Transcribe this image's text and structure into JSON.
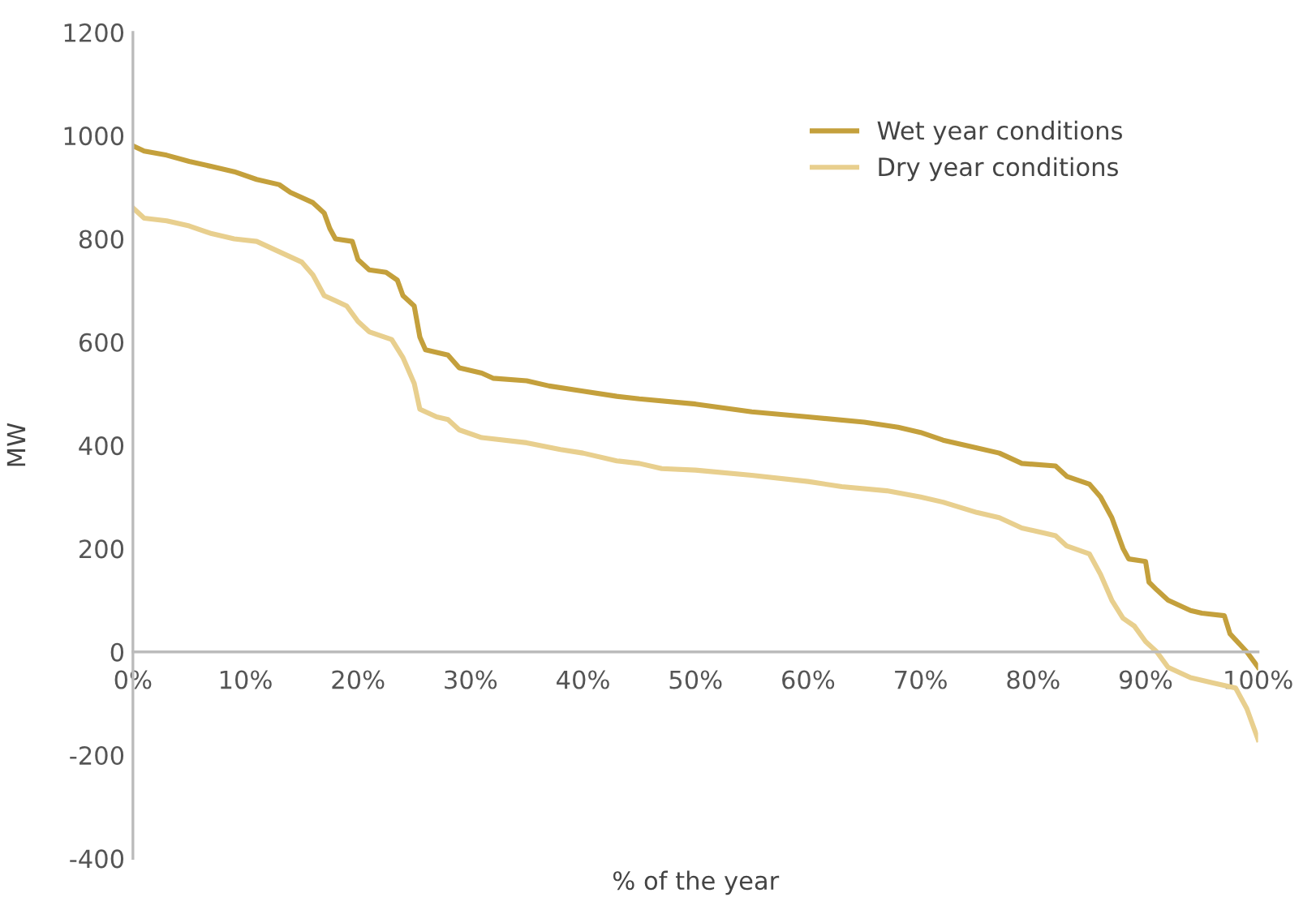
{
  "chart_data": {
    "type": "line",
    "xlabel": "% of the year",
    "ylabel": "MW",
    "xlim": [
      0,
      100
    ],
    "ylim": [
      -400,
      1200
    ],
    "xticks": [
      {
        "value": 0,
        "label": "0%"
      },
      {
        "value": 10,
        "label": "10%"
      },
      {
        "value": 20,
        "label": "20%"
      },
      {
        "value": 30,
        "label": "30%"
      },
      {
        "value": 40,
        "label": "40%"
      },
      {
        "value": 50,
        "label": "50%"
      },
      {
        "value": 60,
        "label": "60%"
      },
      {
        "value": 70,
        "label": "70%"
      },
      {
        "value": 80,
        "label": "80%"
      },
      {
        "value": 90,
        "label": "90%"
      },
      {
        "value": 100,
        "label": "100%"
      }
    ],
    "yticks": [
      -400,
      -200,
      0,
      200,
      400,
      600,
      800,
      1000,
      1200
    ],
    "grid": false,
    "legend": "top right",
    "marker": "none",
    "line_style": "solid",
    "series": [
      {
        "name": "Wet year conditions",
        "color": "#c4a03c",
        "x": [
          0,
          1,
          3,
          5,
          7,
          9,
          11,
          13,
          14,
          16,
          17,
          17.5,
          18,
          19.5,
          20,
          21,
          22.5,
          23.5,
          24,
          25,
          25.5,
          26,
          28,
          29,
          31,
          32,
          35,
          37,
          40,
          43,
          45,
          50,
          55,
          60,
          65,
          68,
          70,
          72,
          75,
          77,
          79,
          82,
          83,
          85,
          86,
          87,
          88,
          88.5,
          90,
          90.3,
          91,
          92,
          94,
          95,
          97,
          97.5,
          99,
          100
        ],
        "values": [
          980,
          970,
          962,
          950,
          940,
          930,
          915,
          905,
          890,
          870,
          850,
          820,
          800,
          795,
          760,
          740,
          735,
          720,
          690,
          670,
          610,
          585,
          575,
          550,
          540,
          530,
          525,
          515,
          505,
          495,
          490,
          480,
          465,
          455,
          445,
          435,
          425,
          410,
          395,
          385,
          365,
          360,
          340,
          325,
          300,
          260,
          200,
          180,
          175,
          135,
          120,
          100,
          80,
          75,
          70,
          35,
          0,
          -30
        ]
      },
      {
        "name": "Dry year conditions",
        "color": "#e8cf8e",
        "x": [
          0,
          1,
          3,
          5,
          7,
          9,
          11,
          13,
          15,
          16,
          17,
          18,
          19,
          20,
          21,
          23,
          24,
          25,
          25.5,
          27,
          28,
          29,
          31,
          35,
          38,
          40,
          43,
          45,
          47,
          50,
          55,
          60,
          63,
          67,
          70,
          72,
          75,
          77,
          79,
          81,
          82,
          83,
          85,
          86,
          87,
          88,
          89,
          90,
          91,
          92,
          94,
          96,
          98,
          99,
          100
        ],
        "values": [
          860,
          840,
          835,
          825,
          810,
          800,
          795,
          775,
          755,
          730,
          690,
          680,
          670,
          640,
          620,
          605,
          570,
          520,
          470,
          455,
          450,
          430,
          415,
          405,
          392,
          385,
          370,
          365,
          355,
          352,
          342,
          330,
          320,
          312,
          300,
          290,
          270,
          260,
          240,
          230,
          225,
          205,
          190,
          150,
          100,
          65,
          50,
          20,
          0,
          -30,
          -50,
          -60,
          -70,
          -110,
          -170
        ]
      }
    ]
  }
}
